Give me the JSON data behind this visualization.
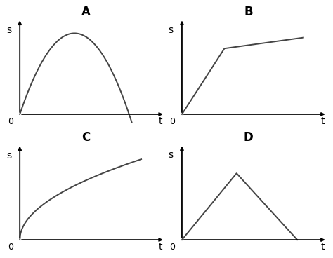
{
  "title_A": "A",
  "title_B": "B",
  "title_C": "C",
  "title_D": "D",
  "label_s": "s",
  "label_t": "t",
  "label_0": "0",
  "line_color": "#444444",
  "axis_color": "#000000",
  "bg_color": "#ffffff",
  "title_fontsize": 12,
  "label_fontsize": 10,
  "tick_fontsize": 9,
  "lw_axis": 1.3,
  "lw_curve": 1.4
}
